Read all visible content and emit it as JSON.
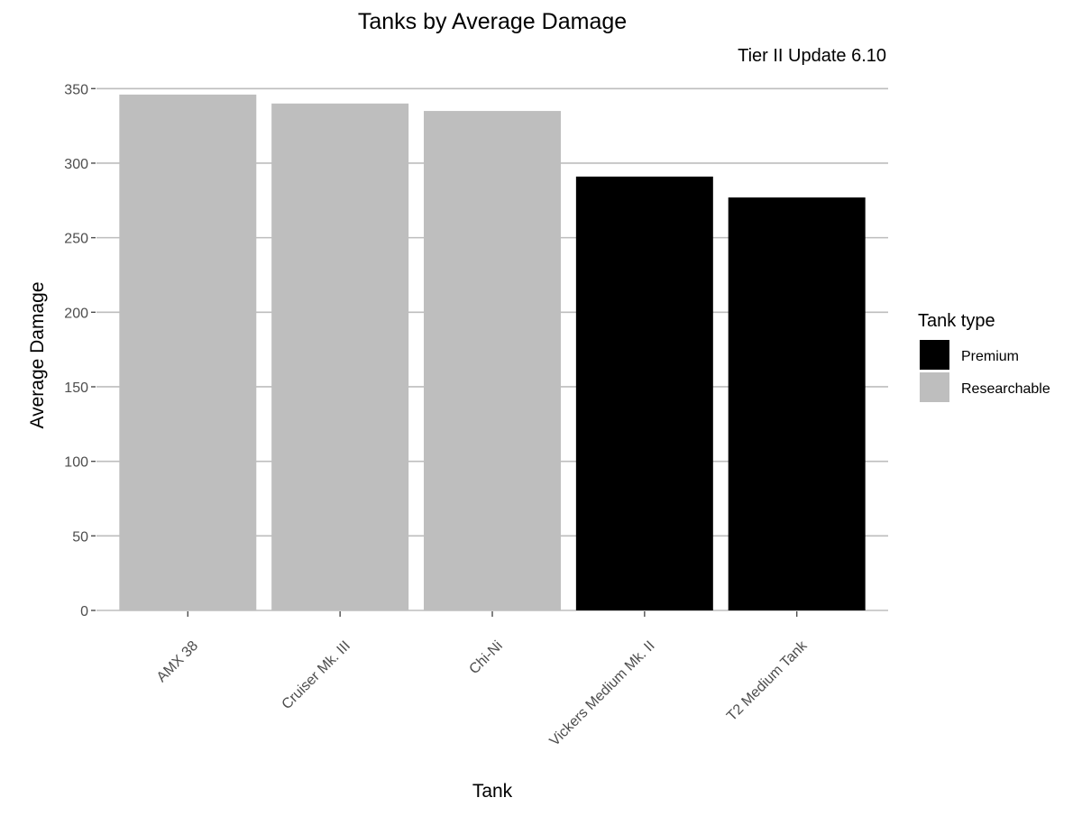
{
  "chart_data": {
    "type": "bar",
    "title": "Tanks by Average Damage",
    "subtitle": "Tier II Update 6.10",
    "xlabel": "Tank",
    "ylabel": "Average Damage",
    "ylim": [
      0,
      355
    ],
    "yticks": [
      0,
      50,
      100,
      150,
      200,
      250,
      300,
      350
    ],
    "grid": "horizontal",
    "categories": [
      "AMX 38",
      "Cruiser Mk. III",
      "Chi-Ni",
      "Vickers Medium Mk. II",
      "T2 Medium Tank"
    ],
    "values": [
      346,
      340,
      335,
      291,
      277
    ],
    "groups": [
      "Researchable",
      "Researchable",
      "Researchable",
      "Premium",
      "Premium"
    ],
    "legend": {
      "title": "Tank type",
      "placement": "right",
      "entries": [
        {
          "name": "Premium",
          "color": "#000000"
        },
        {
          "name": "Researchable",
          "color": "#bebebe"
        }
      ]
    }
  }
}
